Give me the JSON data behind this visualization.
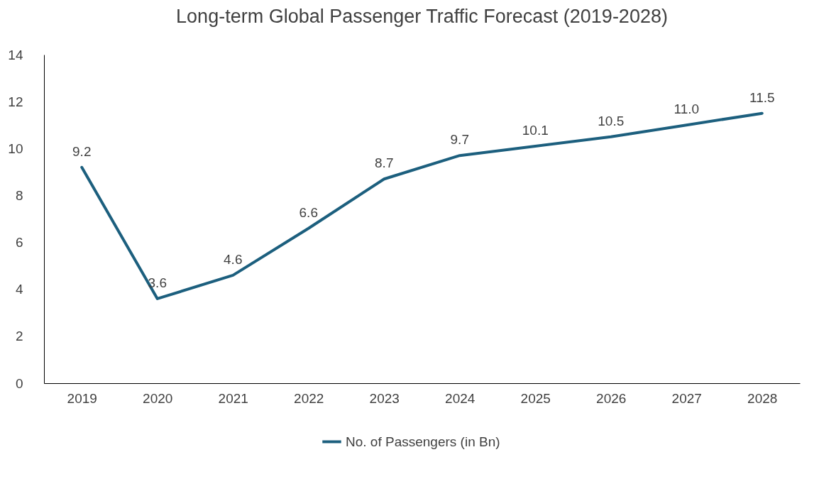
{
  "chart_data": {
    "type": "line",
    "title": "Long-term Global Passenger Traffic Forecast (2019-2028)",
    "categories": [
      "2019",
      "2020",
      "2021",
      "2022",
      "2023",
      "2024",
      "2025",
      "2026",
      "2027",
      "2028"
    ],
    "series": [
      {
        "name": "No. of Passengers (in Bn)",
        "color": "#1c5f7e",
        "values": [
          9.2,
          3.6,
          4.6,
          6.6,
          8.7,
          9.7,
          10.1,
          10.5,
          11.0,
          11.5
        ],
        "value_labels": [
          "9.2",
          "3.6",
          "4.6",
          "6.6",
          "8.7",
          "9.7",
          "10.1",
          "10.5",
          "11.0",
          "11.5"
        ]
      }
    ],
    "ylim": [
      0,
      14
    ],
    "yticks": [
      0,
      2,
      4,
      6,
      8,
      10,
      12,
      14
    ],
    "grid": false,
    "legend": "bottom",
    "marker": "none",
    "line_style": "solid"
  }
}
